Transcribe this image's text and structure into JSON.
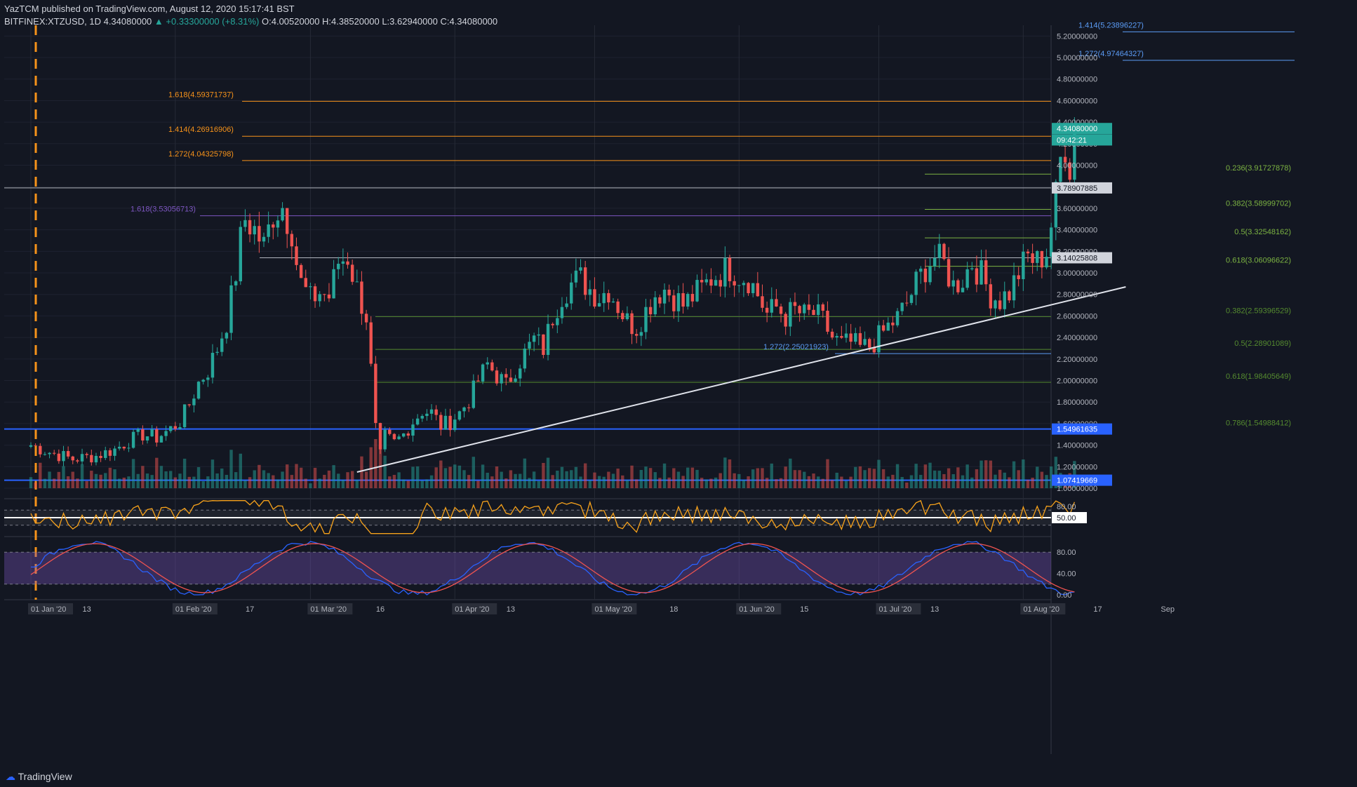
{
  "header": {
    "publish": "YazTCM published on TradingView.com, August 12, 2020 15:17:41 BST",
    "ticker": "BITFINEX:XTZUSD, 1D",
    "last": "4.34080000",
    "change": "▲ +0.33300000 (+8.31%)",
    "ohlc": "O:4.00520000 H:4.38520000 L:3.62940000 C:4.34080000"
  },
  "footer": {
    "brand": "TradingView"
  },
  "colors": {
    "bg": "#131722",
    "up": "#26a69a",
    "down": "#ef5350",
    "fib_orange": "#f7931a",
    "fib_blue": "#5b9cf6",
    "fib_green": "#7cb342",
    "fib_purple": "#7e57c2",
    "rsi": "#f7a21b",
    "stoch_k": "#2962ff",
    "stoch_d": "#ef5350"
  },
  "chart_data": {
    "type": "candlestick",
    "symbol": "BITFINEX:XTZUSD",
    "interval": "1D",
    "ylim": [
      1.0,
      5.3
    ],
    "price_ticks": [
      "1.00000000",
      "1.20000000",
      "1.40000000",
      "1.60000000",
      "1.80000000",
      "2.00000000",
      "2.20000000",
      "2.40000000",
      "2.60000000",
      "2.80000000",
      "3.00000000",
      "3.20000000",
      "3.40000000",
      "3.60000000",
      "3.80000000",
      "4.00000000",
      "4.20000000",
      "4.40000000",
      "4.60000000",
      "4.80000000",
      "5.00000000",
      "5.20000000"
    ],
    "x_ticks": [
      {
        "label": "01 Jan '20",
        "day": 0,
        "boxed": true
      },
      {
        "label": "13",
        "day": 12
      },
      {
        "label": "01 Feb '20",
        "day": 31,
        "boxed": true
      },
      {
        "label": "17",
        "day": 47
      },
      {
        "label": "01 Mar '20",
        "day": 60,
        "boxed": true
      },
      {
        "label": "16",
        "day": 75
      },
      {
        "label": "01 Apr '20",
        "day": 91,
        "boxed": true
      },
      {
        "label": "13",
        "day": 103
      },
      {
        "label": "01 May '20",
        "day": 121,
        "boxed": true
      },
      {
        "label": "18",
        "day": 138
      },
      {
        "label": "01 Jun '20",
        "day": 152,
        "boxed": true
      },
      {
        "label": "15",
        "day": 166
      },
      {
        "label": "01 Jul '20",
        "day": 182,
        "boxed": true
      },
      {
        "label": "13",
        "day": 194
      },
      {
        "label": "01 Aug '20",
        "day": 213,
        "boxed": true
      },
      {
        "label": "17",
        "day": 229
      },
      {
        "label": "Sep",
        "day": 244
      }
    ],
    "price_labels": [
      {
        "text": "4.34080000",
        "value": 4.3408,
        "color": "#26a69a"
      },
      {
        "text": "09:42:21",
        "value": 4.235,
        "color": "#26a69a"
      },
      {
        "text": "3.78907885",
        "value": 3.78907885,
        "color": "#d1d4dc"
      },
      {
        "text": "3.14025808",
        "value": 3.14025808,
        "color": "#d1d4dc"
      },
      {
        "text": "1.54961635",
        "value": 1.54961635,
        "color": "#2962ff"
      },
      {
        "text": "1.07419669",
        "value": 1.07419669,
        "color": "#2962ff"
      }
    ],
    "fib_levels": [
      {
        "text": "1.414(5.23896227)",
        "value": 5.23896227,
        "color": "#5b9cf6",
        "group": "b"
      },
      {
        "text": "1.272(4.97464327)",
        "value": 4.97464327,
        "color": "#5b9cf6",
        "group": "b"
      },
      {
        "text": "1.618(4.59371737)",
        "value": 4.59371737,
        "color": "#f7931a",
        "group": "a"
      },
      {
        "text": "1.414(4.26916906)",
        "value": 4.26916906,
        "color": "#f7931a",
        "group": "a"
      },
      {
        "text": "1.272(4.04325798)",
        "value": 4.04325798,
        "color": "#f7931a",
        "group": "a"
      },
      {
        "text": "0.236(3.91727878)",
        "value": 3.91727878,
        "color": "#7cb342",
        "group": "c"
      },
      {
        "text": "1.618(3.53056713)",
        "value": 3.53056713,
        "color": "#7e57c2",
        "group": "p"
      },
      {
        "text": "0.382(3.58999702)",
        "value": 3.58999702,
        "color": "#7cb342",
        "group": "c"
      },
      {
        "text": "0.5(3.32548162)",
        "value": 3.32548162,
        "color": "#7cb342",
        "group": "c"
      },
      {
        "text": "0.618(3.06096622)",
        "value": 3.06096622,
        "color": "#7cb342",
        "group": "c"
      },
      {
        "text": "0.382(2.59396529)",
        "value": 2.59396529,
        "color": "#558b2f",
        "group": "d"
      },
      {
        "text": "0.5(2.28901089)",
        "value": 2.28901089,
        "color": "#558b2f",
        "group": "d"
      },
      {
        "text": "1.272(2.25021923)",
        "value": 2.25021923,
        "color": "#5b9cf6",
        "group": "e"
      },
      {
        "text": "0.618(1.98405649)",
        "value": 1.98405649,
        "color": "#558b2f",
        "group": "d"
      },
      {
        "text": "0.786(1.54988412)",
        "value": 1.54988412,
        "color": "#558b2f",
        "group": "d"
      }
    ],
    "trendline": {
      "from": {
        "day": 70,
        "price": 1.15
      },
      "to": {
        "day": 235,
        "price": 2.87
      }
    },
    "rsi": {
      "ticks": [
        "80.00",
        "50.00"
      ],
      "levels": [
        70,
        50,
        30
      ]
    },
    "stoch": {
      "ticks": [
        "80.00",
        "40.00",
        "0.00"
      ],
      "levels": [
        80,
        20
      ]
    },
    "anchors": [
      [
        0,
        1.4
      ],
      [
        5,
        1.32
      ],
      [
        9,
        1.27
      ],
      [
        14,
        1.3
      ],
      [
        18,
        1.36
      ],
      [
        21,
        1.44
      ],
      [
        24,
        1.5
      ],
      [
        27,
        1.47
      ],
      [
        30,
        1.55
      ],
      [
        32,
        1.62
      ],
      [
        34,
        1.78
      ],
      [
        36,
        1.98
      ],
      [
        38,
        2.1
      ],
      [
        40,
        2.3
      ],
      [
        42,
        2.55
      ],
      [
        44,
        3.0
      ],
      [
        45,
        3.3
      ],
      [
        46,
        3.5
      ],
      [
        48,
        3.4
      ],
      [
        50,
        3.25
      ],
      [
        52,
        3.55
      ],
      [
        54,
        3.62
      ],
      [
        56,
        3.4
      ],
      [
        57,
        3.1
      ],
      [
        58,
        2.9
      ],
      [
        60,
        2.75
      ],
      [
        62,
        2.82
      ],
      [
        64,
        2.78
      ],
      [
        66,
        3.1
      ],
      [
        68,
        3.15
      ],
      [
        70,
        2.85
      ],
      [
        72,
        2.6
      ],
      [
        73,
        2.1
      ],
      [
        74,
        1.55
      ],
      [
        75,
        1.3
      ],
      [
        76,
        1.48
      ],
      [
        78,
        1.42
      ],
      [
        80,
        1.5
      ],
      [
        82,
        1.62
      ],
      [
        84,
        1.72
      ],
      [
        86,
        1.7
      ],
      [
        88,
        1.58
      ],
      [
        90,
        1.62
      ],
      [
        92,
        1.7
      ],
      [
        94,
        1.82
      ],
      [
        96,
        2.0
      ],
      [
        98,
        2.15
      ],
      [
        100,
        2.05
      ],
      [
        102,
        1.95
      ],
      [
        104,
        2.12
      ],
      [
        106,
        2.25
      ],
      [
        108,
        2.38
      ],
      [
        110,
        2.3
      ],
      [
        112,
        2.6
      ],
      [
        114,
        2.8
      ],
      [
        116,
        2.9
      ],
      [
        118,
        2.95
      ],
      [
        120,
        2.85
      ],
      [
        122,
        2.78
      ],
      [
        124,
        2.85
      ],
      [
        126,
        2.7
      ],
      [
        128,
        2.55
      ],
      [
        130,
        2.5
      ],
      [
        132,
        2.65
      ],
      [
        134,
        2.8
      ],
      [
        136,
        2.85
      ],
      [
        138,
        2.78
      ],
      [
        140,
        2.7
      ],
      [
        142,
        2.78
      ],
      [
        144,
        2.85
      ],
      [
        146,
        2.95
      ],
      [
        148,
        3.0
      ],
      [
        150,
        3.05
      ],
      [
        152,
        2.98
      ],
      [
        154,
        2.95
      ],
      [
        156,
        2.8
      ],
      [
        158,
        2.62
      ],
      [
        160,
        2.68
      ],
      [
        162,
        2.6
      ],
      [
        164,
        2.65
      ],
      [
        166,
        2.6
      ],
      [
        168,
        2.62
      ],
      [
        170,
        2.55
      ],
      [
        172,
        2.4
      ],
      [
        174,
        2.33
      ],
      [
        176,
        2.35
      ],
      [
        178,
        2.3
      ],
      [
        180,
        2.32
      ],
      [
        182,
        2.4
      ],
      [
        184,
        2.5
      ],
      [
        186,
        2.58
      ],
      [
        188,
        2.72
      ],
      [
        190,
        2.9
      ],
      [
        192,
        3.05
      ],
      [
        194,
        3.15
      ],
      [
        196,
        3.08
      ],
      [
        198,
        2.88
      ],
      [
        200,
        2.95
      ],
      [
        202,
        3.1
      ],
      [
        204,
        2.98
      ],
      [
        206,
        2.8
      ],
      [
        208,
        2.75
      ],
      [
        210,
        2.82
      ],
      [
        212,
        3.0
      ],
      [
        214,
        3.15
      ],
      [
        216,
        3.1
      ],
      [
        218,
        3.2
      ],
      [
        219,
        3.45
      ],
      [
        220,
        3.7
      ],
      [
        221,
        4.05
      ],
      [
        222,
        4.2
      ],
      [
        223,
        4.0
      ],
      [
        224,
        4.3408
      ]
    ]
  }
}
